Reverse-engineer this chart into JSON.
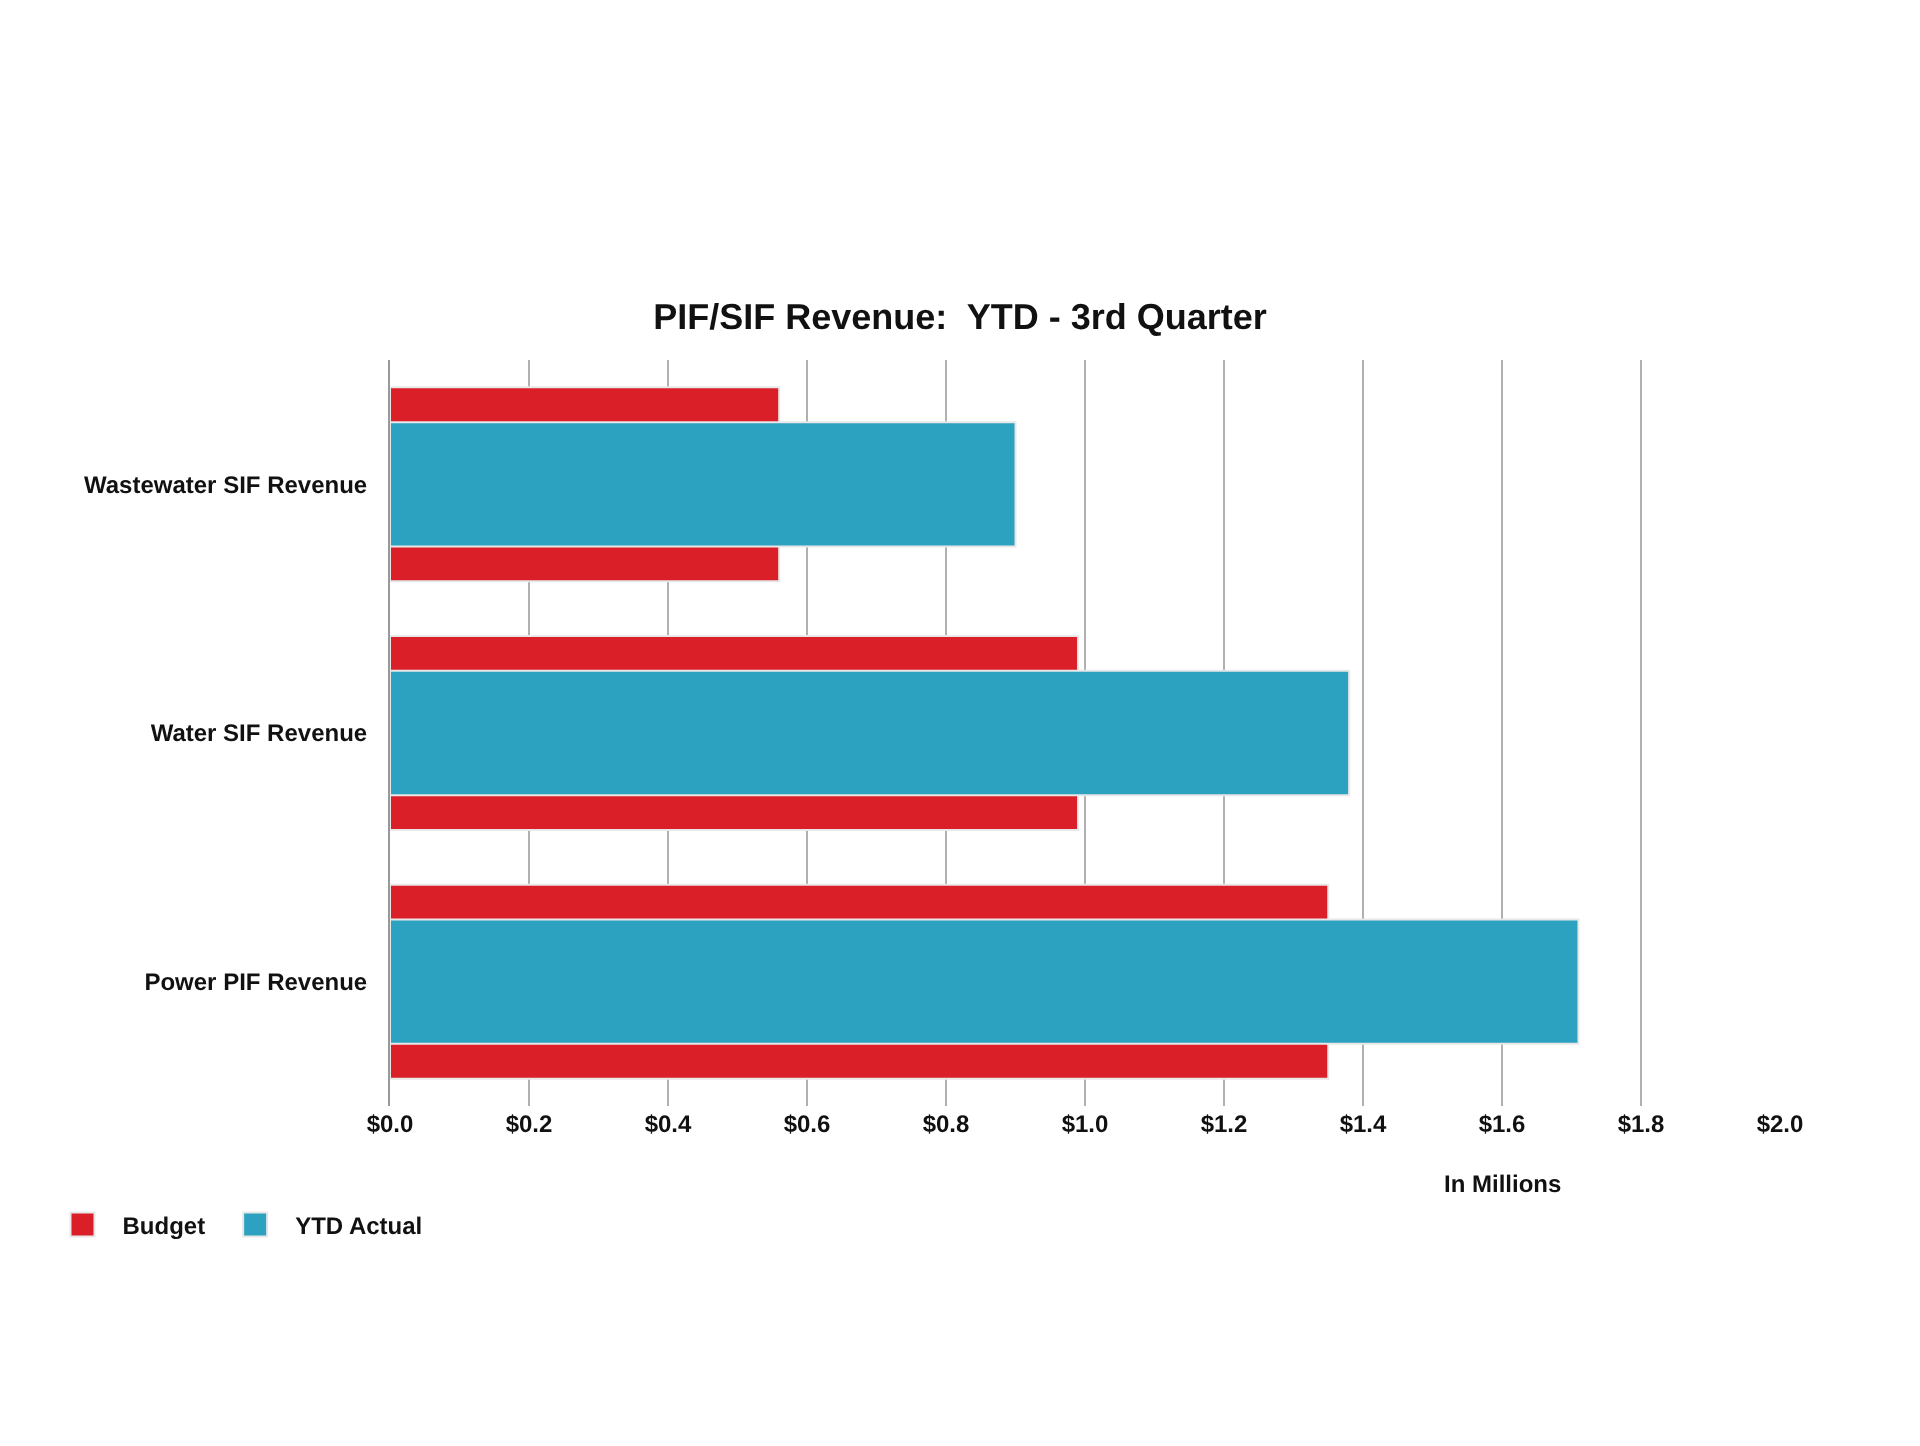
{
  "chart_data": {
    "type": "bar",
    "orientation": "horizontal",
    "title": "PIF/SIF Revenue:  YTD - 3rd Quarter",
    "xlabel": "In Millions",
    "categories": [
      "Wastewater SIF Revenue",
      "Water SIF Revenue",
      "Power PIF Revenue"
    ],
    "series": [
      {
        "name": "Budget",
        "color": "#da1f28",
        "values": [
          0.56,
          0.99,
          1.35
        ]
      },
      {
        "name": "YTD Actual",
        "color": "#2ca2c0",
        "values": [
          0.9,
          1.38,
          1.71
        ]
      }
    ],
    "xlim": [
      0,
      2.0
    ],
    "xticks": [
      {
        "value": 0,
        "label": "$0.0"
      },
      {
        "value": 0.2,
        "label": "$0.2"
      },
      {
        "value": 0.4,
        "label": "$0.4"
      },
      {
        "value": 0.6,
        "label": "$0.6"
      },
      {
        "value": 0.8,
        "label": "$0.8"
      },
      {
        "value": 1.0,
        "label": "$1.0"
      },
      {
        "value": 1.2,
        "label": "$1.2"
      },
      {
        "value": 1.4,
        "label": "$1.4"
      },
      {
        "value": 1.6,
        "label": "$1.6"
      },
      {
        "value": 1.8,
        "label": "$1.8"
      },
      {
        "value": 2.0,
        "label": "$2.0"
      }
    ],
    "grid": "x",
    "legend": "bottom left"
  }
}
